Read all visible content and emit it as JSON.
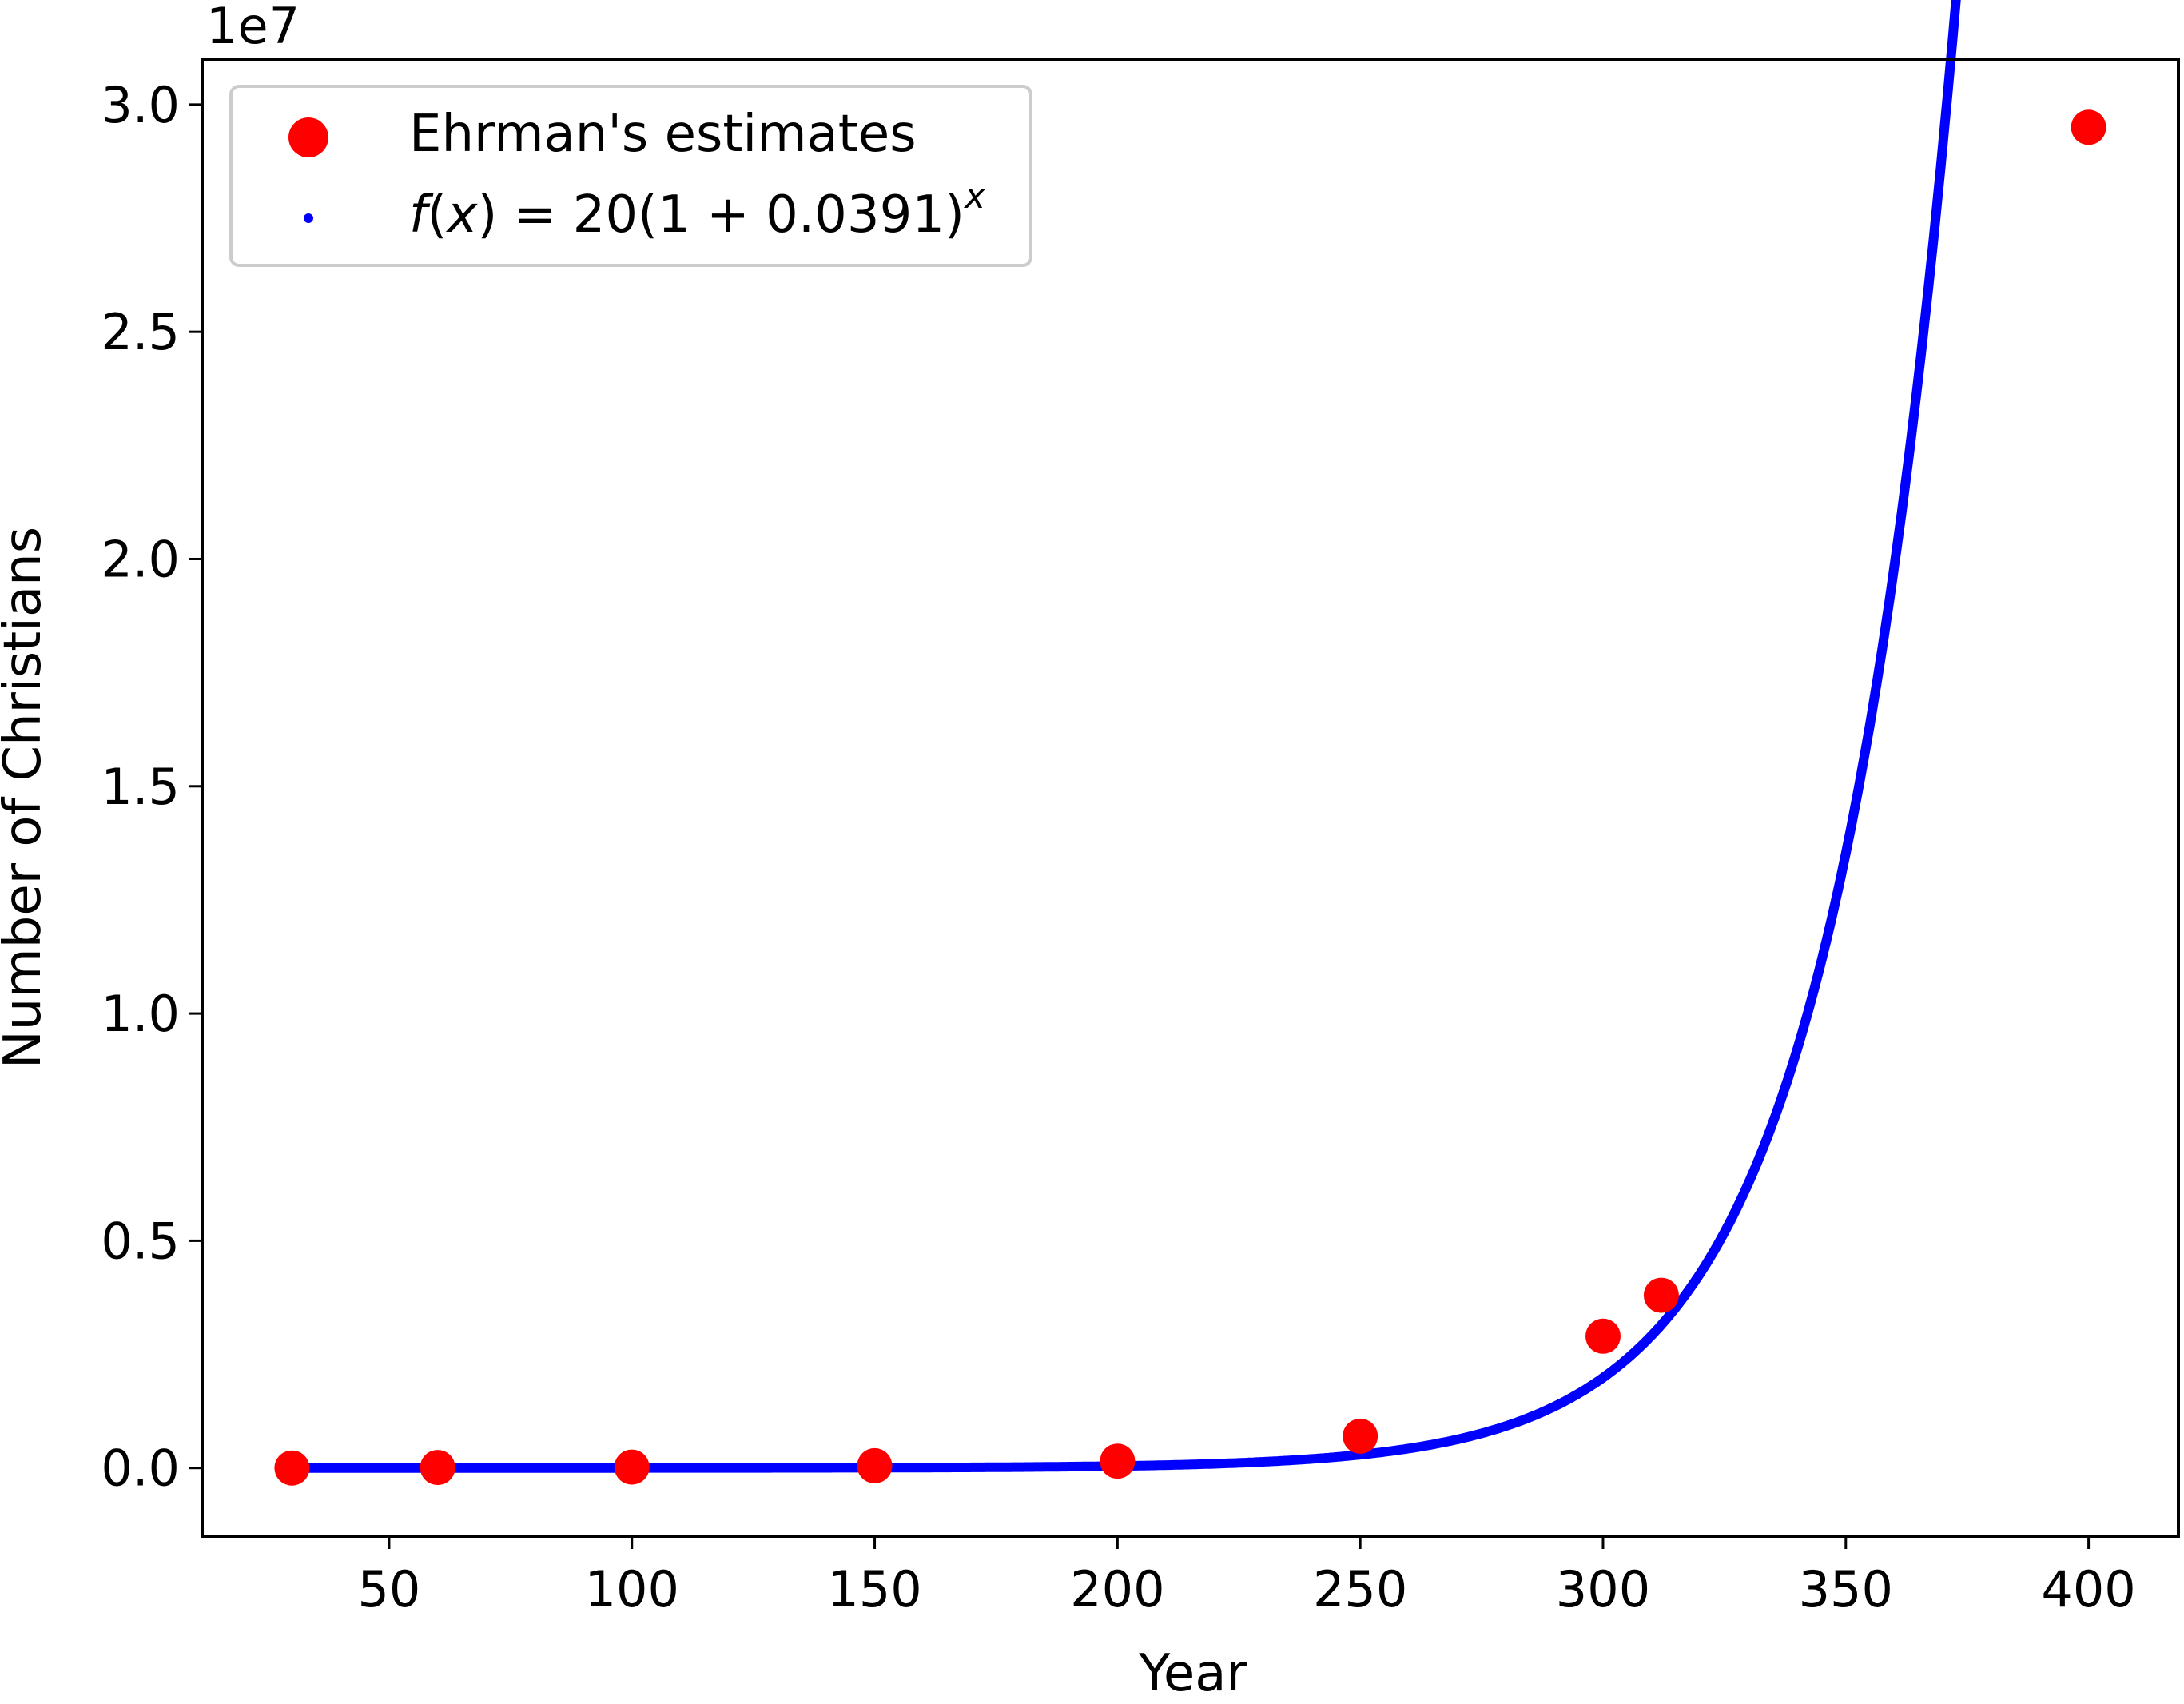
{
  "chart_data": {
    "type": "scatter",
    "xlabel": "Year",
    "ylabel": "Number of Christians",
    "y_offset_label": "1e7",
    "xlim": [
      11.5,
      418.5
    ],
    "ylim": [
      -1500000,
      31000000
    ],
    "x_ticks": [
      50,
      100,
      150,
      200,
      250,
      300,
      350,
      400
    ],
    "x_tick_labels": [
      "50",
      "100",
      "150",
      "200",
      "250",
      "300",
      "350",
      "400"
    ],
    "y_ticks": [
      0,
      5000000,
      10000000,
      15000000,
      20000000,
      25000000,
      30000000
    ],
    "y_tick_labels": [
      "0.0",
      "0.5",
      "1.0",
      "1.5",
      "2.0",
      "2.5",
      "3.0"
    ],
    "grid": false,
    "legend_position": "top-left",
    "series": [
      {
        "name": "Ehrman's estimates",
        "kind": "scatter",
        "color": "#ff0000",
        "x": [
          30,
          60,
          100,
          150,
          200,
          250,
          300,
          312,
          400
        ],
        "y": [
          1000,
          10000,
          20000,
          50000,
          150000,
          700000,
          2900000,
          3800000,
          29500000
        ]
      },
      {
        "name": "f(x) = 20(1 + 0.0391)^x",
        "kind": "curve",
        "color": "#0000ff",
        "formula": {
          "a": 20,
          "r": 0.0391
        },
        "x_range": [
          30,
          400
        ]
      }
    ]
  }
}
